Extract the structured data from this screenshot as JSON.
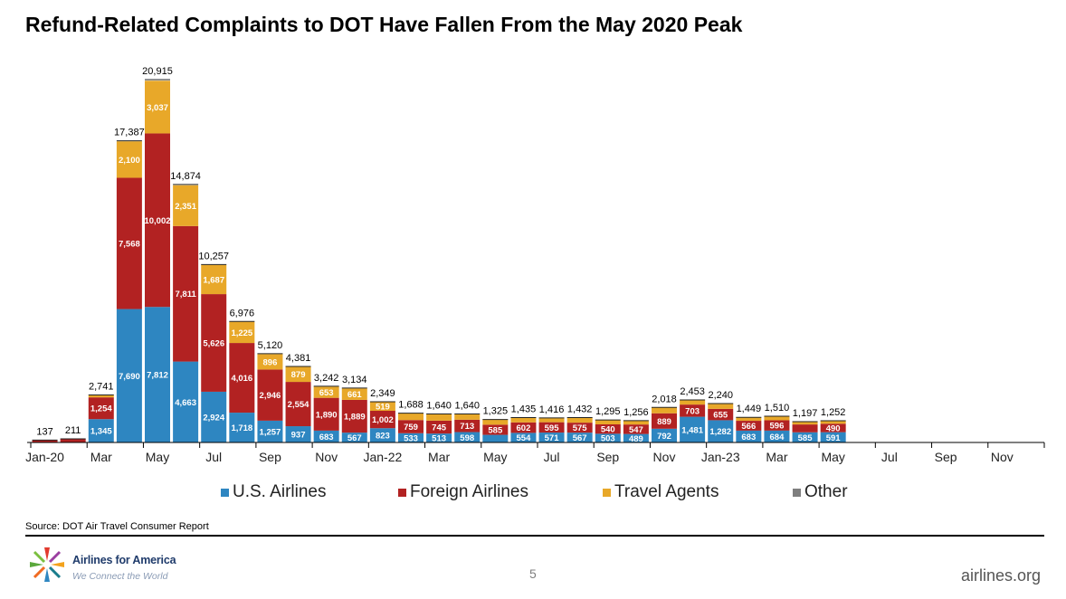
{
  "title": "Refund-Related Complaints to DOT Have Fallen From the May 2020 Peak",
  "source": "Source: DOT Air Travel Consumer Report",
  "page_number": "5",
  "footer_url": "airlines.org",
  "logo": {
    "name": "Airlines for America",
    "tagline": "We Connect the World"
  },
  "colors": {
    "us_airlines": "#2e86c1",
    "foreign_airlines": "#b22222",
    "travel_agents": "#e8a829",
    "other": "#7f7f7f"
  },
  "legend": [
    {
      "label": "U.S. Airlines",
      "color": "#2e86c1"
    },
    {
      "label": "Foreign Airlines",
      "color": "#b22222"
    },
    {
      "label": "Travel Agents",
      "color": "#e8a829"
    },
    {
      "label": "Other",
      "color": "#7f7f7f"
    }
  ],
  "chart_data": {
    "type": "bar",
    "stacked": true,
    "title": "Refund-Related Complaints to DOT Have Fallen From the May 2020 Peak",
    "categories": [
      "Jan-20",
      "Feb-20",
      "Mar-20",
      "Apr-20",
      "May-20",
      "Jun-20",
      "Jul-20",
      "Aug-20",
      "Sep-20",
      "Oct-20",
      "Nov-20",
      "Dec-20",
      "Jan-22",
      "Feb-22",
      "Mar-22",
      "Apr-22",
      "May-22",
      "Jun-22",
      "Jul-22",
      "Aug-22",
      "Sep-22",
      "Oct-22",
      "Nov-22",
      "Dec-22",
      "Jan-23",
      "Feb-23",
      "Mar-23",
      "Apr-23",
      "May-23",
      "Jun-23",
      "Jul-23",
      "Aug-23",
      "Sep-23",
      "Oct-23",
      "Nov-23",
      "Dec-23"
    ],
    "tick_labels": [
      "Jan-20",
      "",
      "Mar",
      "",
      "May",
      "",
      "Jul",
      "",
      "Sep",
      "",
      "Nov",
      "",
      "Jan-22",
      "",
      "Mar",
      "",
      "May",
      "",
      "Jul",
      "",
      "Sep",
      "",
      "Nov",
      "",
      "Jan-23",
      "",
      "Mar",
      "",
      "May",
      "",
      "Jul",
      "",
      "Sep",
      "",
      "Nov",
      ""
    ],
    "series": [
      {
        "name": "U.S. Airlines",
        "values": [
          null,
          null,
          1345,
          7690,
          7812,
          4663,
          2924,
          1718,
          1257,
          937,
          683,
          567,
          823,
          533,
          513,
          598,
          439,
          554,
          571,
          567,
          503,
          489,
          792,
          1481,
          1282,
          683,
          684,
          585,
          591,
          null,
          null,
          null,
          null,
          null,
          null,
          null
        ]
      },
      {
        "name": "Foreign Airlines",
        "values": [
          null,
          null,
          1254,
          7568,
          10002,
          7811,
          5626,
          4016,
          2946,
          2554,
          1890,
          1889,
          1002,
          759,
          745,
          713,
          585,
          602,
          595,
          575,
          540,
          547,
          889,
          703,
          655,
          566,
          596,
          453,
          490,
          null,
          null,
          null,
          null,
          null,
          null,
          null
        ]
      },
      {
        "name": "Travel Agents",
        "values": [
          null,
          null,
          138,
          2100,
          3037,
          2351,
          1687,
          1225,
          896,
          879,
          653,
          661,
          519,
          391,
          381,
          329,
          298,
          279,
          248,
          285,
          245,
          220,
          336,
          264,
          301,
          199,
          229,
          155,
          168,
          null,
          null,
          null,
          null,
          null,
          null,
          null
        ]
      },
      {
        "name": "Other",
        "values": [
          null,
          null,
          null,
          null,
          null,
          null,
          null,
          null,
          null,
          null,
          null,
          null,
          null,
          null,
          null,
          null,
          null,
          null,
          null,
          null,
          null,
          null,
          null,
          null,
          null,
          null,
          null,
          null,
          null,
          null,
          null,
          null,
          null,
          null,
          null,
          null
        ]
      }
    ],
    "totals": [
      137,
      211,
      2741,
      17387,
      20915,
      14874,
      10257,
      6976,
      5120,
      4381,
      3242,
      3134,
      2349,
      1688,
      1640,
      1640,
      1325,
      1435,
      1416,
      1432,
      1295,
      1256,
      2018,
      2453,
      2240,
      1449,
      1510,
      1197,
      1252,
      null,
      null,
      null,
      null,
      null,
      null,
      null
    ],
    "ylim": [
      0,
      21500
    ],
    "grid": false,
    "legend_position": "bottom"
  }
}
